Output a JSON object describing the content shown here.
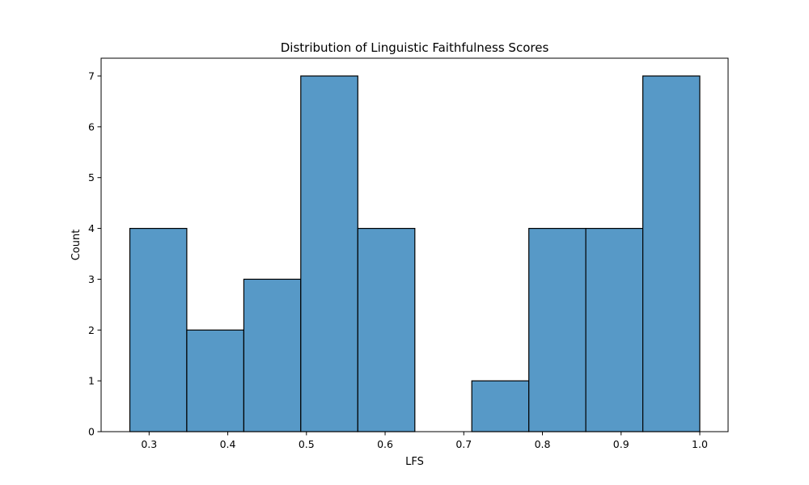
{
  "chart_data": {
    "type": "bar",
    "title": "Distribution of Linguistic Faithfulness Scores",
    "xlabel": "LFS",
    "ylabel": "Count",
    "bin_edges": [
      0.2755,
      0.3479,
      0.4204,
      0.4928,
      0.5653,
      0.6378,
      0.7102,
      0.7827,
      0.8551,
      0.9276,
      1.0
    ],
    "counts": [
      4,
      2,
      3,
      7,
      4,
      0,
      1,
      4,
      4,
      7
    ],
    "xlim": [
      0.239,
      1.036
    ],
    "ylim": [
      0,
      7.35
    ],
    "xticks": [
      0.3,
      0.4,
      0.5,
      0.6,
      0.7,
      0.8,
      0.9,
      1.0
    ],
    "xtick_labels": [
      "0.3",
      "0.4",
      "0.5",
      "0.6",
      "0.7",
      "0.8",
      "0.9",
      "1.0"
    ],
    "yticks": [
      0,
      1,
      2,
      3,
      4,
      5,
      6,
      7
    ],
    "ytick_labels": [
      "0",
      "1",
      "2",
      "3",
      "4",
      "5",
      "6",
      "7"
    ],
    "grid": false,
    "legend": "none",
    "colors": {
      "bar_fill": "#5799c7",
      "bar_edge": "#000000"
    }
  }
}
